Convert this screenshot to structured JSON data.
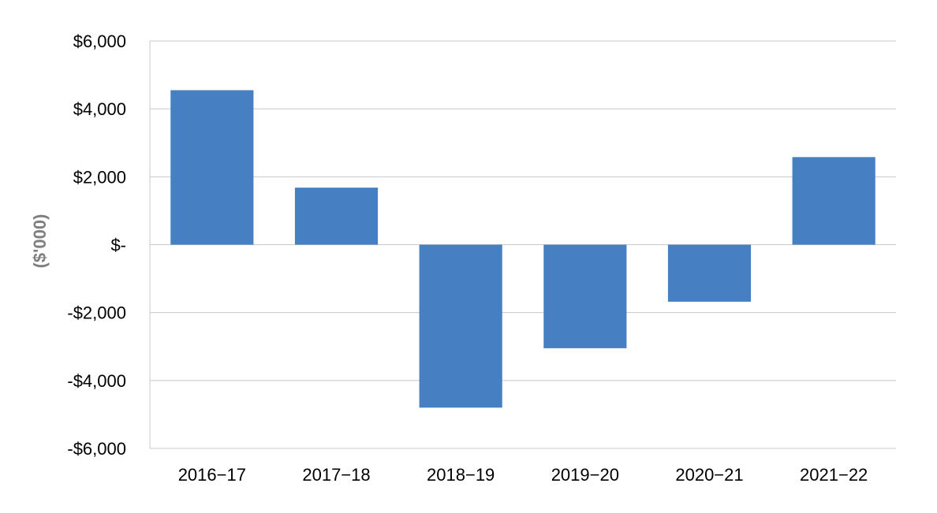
{
  "chart_data": {
    "type": "bar",
    "title": "",
    "xlabel": "",
    "ylabel": "($'000)",
    "categories": [
      "2016−17",
      "2017−18",
      "2018−19",
      "2019−20",
      "2020−21",
      "2021−22"
    ],
    "values": [
      4550,
      1680,
      -4800,
      -3050,
      -1680,
      2580
    ],
    "ylim": [
      -6000,
      6000
    ],
    "yticks": [
      6000,
      4000,
      2000,
      0,
      -2000,
      -4000,
      -6000
    ],
    "ytick_labels": [
      "$6,000",
      "$4,000",
      "$2,000",
      "$-",
      "-$2,000",
      "-$4,000",
      "-$6,000"
    ],
    "grid": true,
    "legend": "none",
    "colors": {
      "bar": "#4680c2",
      "grid": "#c8c8c8",
      "axis_title": "#7f7f7f"
    }
  }
}
